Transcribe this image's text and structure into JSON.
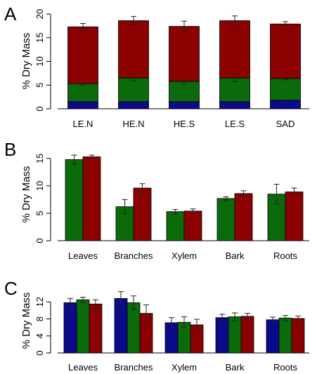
{
  "colors": {
    "blue": "#0a0a8a",
    "green": "#0b6b0b",
    "red": "#8b0000"
  },
  "chart_data": [
    {
      "panel": "A",
      "type": "bar",
      "stacked": true,
      "ylabel": "% Dry Mass",
      "ylim": [
        0,
        20
      ],
      "yticks": [
        0,
        5,
        10,
        15,
        20
      ],
      "categories": [
        "LE.N",
        "HE.N",
        "HE.S",
        "LE.S",
        "SAD"
      ],
      "series": [
        {
          "color": "blue",
          "values": [
            1.5,
            1.5,
            1.5,
            1.5,
            1.8
          ],
          "err": [
            0.15,
            0.15,
            0.15,
            0.15,
            0.15
          ]
        },
        {
          "color": "green",
          "values": [
            3.8,
            5.0,
            4.3,
            5.0,
            4.6
          ],
          "err": [
            0.35,
            0.6,
            0.5,
            0.8,
            0.3
          ]
        },
        {
          "color": "red",
          "values": [
            12.0,
            12.1,
            11.6,
            12.1,
            11.5
          ],
          "err": [
            0.7,
            0.9,
            1.1,
            1.0,
            0.5
          ]
        }
      ]
    },
    {
      "panel": "B",
      "type": "bar",
      "stacked": false,
      "ylabel": "% Dry Mass",
      "ylim": [
        0,
        16
      ],
      "yticks": [
        0,
        5,
        10,
        15
      ],
      "categories": [
        "Leaves",
        "Branches",
        "Xylem",
        "Bark",
        "Roots"
      ],
      "series": [
        {
          "color": "green",
          "values": [
            14.8,
            6.2,
            5.3,
            7.7,
            8.5
          ],
          "err": [
            0.8,
            1.3,
            0.4,
            0.3,
            1.8
          ]
        },
        {
          "color": "red",
          "values": [
            15.3,
            9.6,
            5.4,
            8.6,
            8.9
          ],
          "err": [
            0.3,
            0.8,
            0.4,
            0.5,
            0.7
          ]
        }
      ]
    },
    {
      "panel": "C",
      "type": "bar",
      "stacked": false,
      "ylabel": "% Dry Mass",
      "ylim": [
        0,
        15
      ],
      "yticks": [
        0,
        4,
        8,
        12
      ],
      "categories": [
        "Leaves",
        "Branches",
        "Xylem",
        "Bark",
        "Roots"
      ],
      "series": [
        {
          "color": "blue",
          "values": [
            11.8,
            12.8,
            7.1,
            8.3,
            7.8
          ],
          "err": [
            1.0,
            1.6,
            1.2,
            0.8,
            0.6
          ]
        },
        {
          "color": "green",
          "values": [
            12.5,
            11.8,
            7.2,
            8.5,
            8.2
          ],
          "err": [
            0.6,
            1.6,
            1.3,
            0.9,
            0.6
          ]
        },
        {
          "color": "red",
          "values": [
            11.5,
            9.3,
            6.6,
            8.6,
            8.1
          ],
          "err": [
            1.0,
            2.0,
            1.3,
            0.7,
            0.6
          ]
        }
      ]
    }
  ]
}
